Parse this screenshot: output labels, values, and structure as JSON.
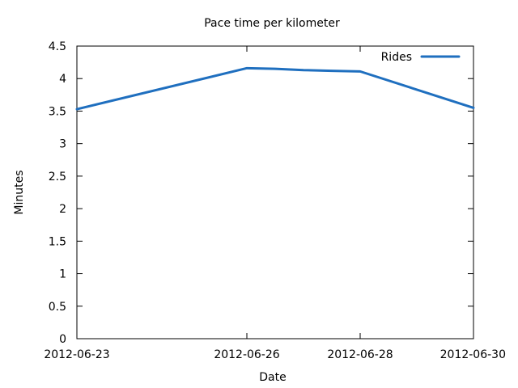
{
  "chart_data": {
    "type": "line",
    "title": "Pace time per kilometer",
    "xlabel": "Date",
    "ylabel": "Minutes",
    "x_ticks": [
      "2012-06-23",
      "2012-06-26",
      "2012-06-28",
      "2012-06-30"
    ],
    "y_ticks": [
      "0",
      "0.5",
      "1",
      "1.5",
      "2",
      "2.5",
      "3",
      "3.5",
      "4",
      "4.5"
    ],
    "ylim": [
      0,
      4.5
    ],
    "xlim": [
      "2012-06-23",
      "2012-06-30"
    ],
    "legend_position": "top-right",
    "grid": false,
    "series": [
      {
        "name": "Rides",
        "color": "#1f6fbf",
        "points": [
          {
            "x": "2012-06-23",
            "y": 3.53
          },
          {
            "x": "2012-06-26",
            "y": 4.16
          },
          {
            "x": "2012-06-26 12:00",
            "y": 4.15
          },
          {
            "x": "2012-06-27",
            "y": 4.13
          },
          {
            "x": "2012-06-27 12:00",
            "y": 4.12
          },
          {
            "x": "2012-06-28",
            "y": 4.11
          },
          {
            "x": "2012-06-30",
            "y": 3.55
          }
        ]
      }
    ]
  }
}
